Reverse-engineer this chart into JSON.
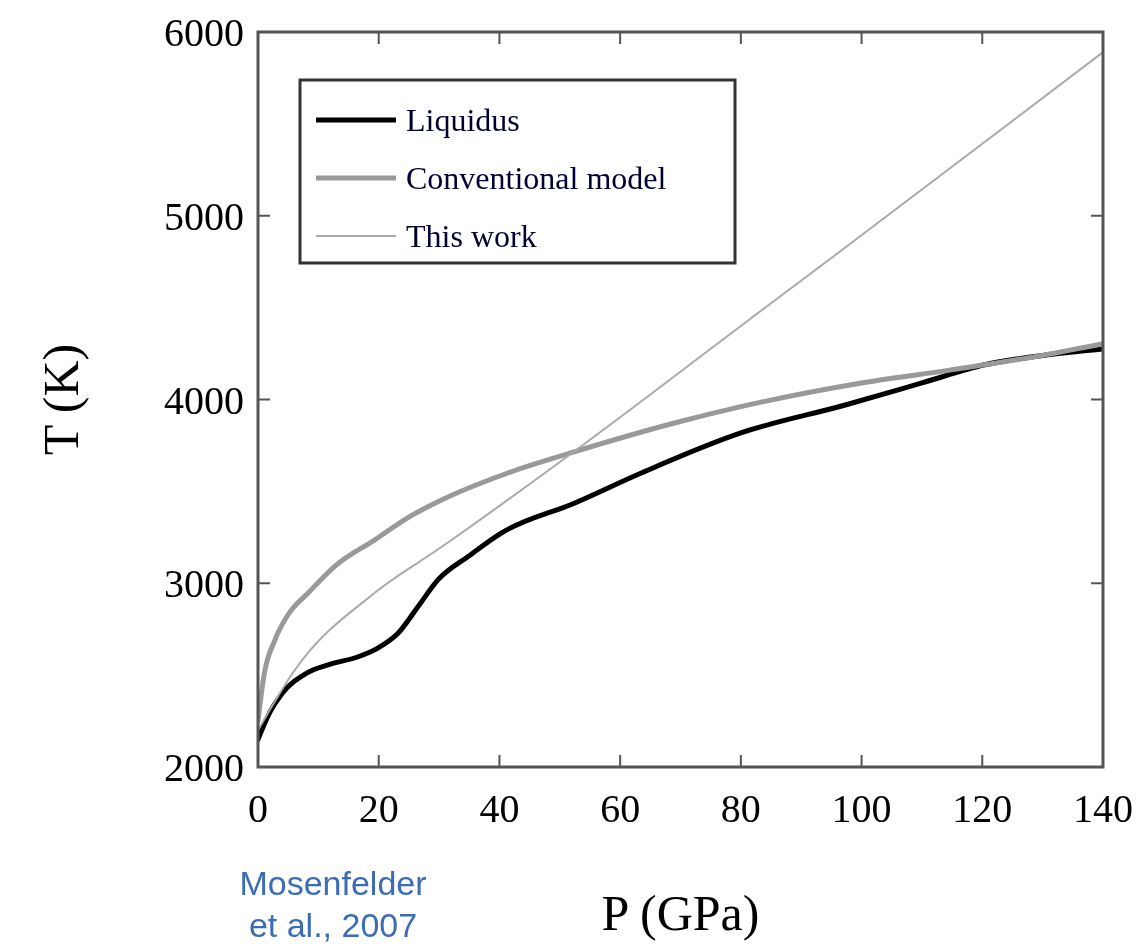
{
  "chart_data": {
    "type": "line",
    "xlabel": "P (GPa)",
    "ylabel": "T (K)",
    "xlim": [
      0,
      140
    ],
    "ylim": [
      2000,
      6000
    ],
    "xticks": [
      0,
      20,
      40,
      60,
      80,
      100,
      120,
      140
    ],
    "yticks": [
      2000,
      3000,
      4000,
      5000,
      6000
    ],
    "grid": false,
    "legend": "top left",
    "marker": "none",
    "line_style": "solid",
    "annotations": [
      "Mosenfelder et al., 2007"
    ],
    "series": [
      {
        "name": "Liquidus",
        "color": "#000000",
        "x": [
          0,
          2,
          4,
          8,
          12,
          16.6,
          20,
          23.2,
          26.5,
          29.8,
          35,
          40.3,
          52.5,
          63.5,
          80,
          97.3,
          110,
          120.4,
          130,
          140
        ],
        "values": [
          2150,
          2300,
          2400,
          2510,
          2560,
          2600,
          2650,
          2728,
          2872,
          3018,
          3150,
          3273,
          3437,
          3600,
          3818,
          3970,
          4090,
          4189,
          4240,
          4275
        ]
      },
      {
        "name": "Conventional model",
        "color": "#999999",
        "x": [
          0,
          1,
          2.8,
          5,
          8.3,
          13,
          19.3,
          25,
          30.4,
          41.4,
          52.5,
          69,
          80,
          100,
          114.6,
          130,
          140
        ],
        "values": [
          2250,
          2500,
          2691,
          2830,
          2947,
          3100,
          3235,
          3360,
          3453,
          3600,
          3716,
          3872,
          3961,
          4090,
          4160,
          4240,
          4303
        ]
      },
      {
        "name": "This work",
        "color": "#aaaaaa",
        "x": [
          0,
          6.1,
          19.3,
          30.4,
          52.5,
          80,
          97.3,
          140
        ],
        "values": [
          2200,
          2528,
          2947,
          3197,
          3720,
          4400,
          4827,
          5890
        ]
      }
    ]
  }
}
